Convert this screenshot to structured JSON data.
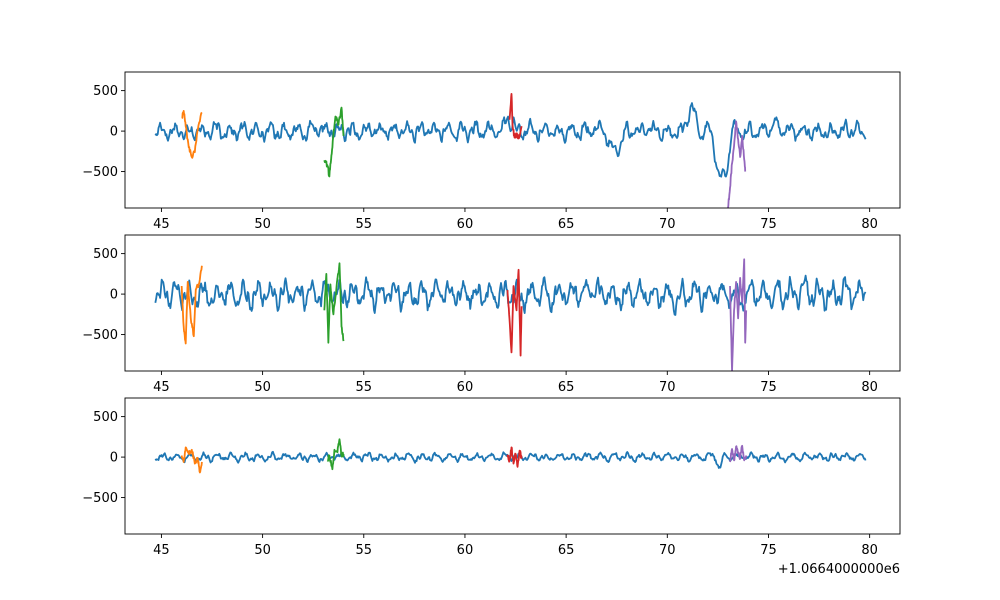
{
  "figure": {
    "offset_label": "+1.0664000000e6"
  },
  "chart_data": [
    {
      "type": "line",
      "title": "",
      "xlabel": "",
      "ylabel": "",
      "x_offset": 1066400,
      "xlim": [
        43.2,
        81.5
      ],
      "ylim": [
        -950,
        730
      ],
      "x_ticks": [
        45,
        50,
        55,
        60,
        65,
        70,
        75,
        80
      ],
      "y_ticks": [
        500,
        0,
        -500
      ],
      "x_tick_labels": [
        "45",
        "50",
        "55",
        "60",
        "65",
        "70",
        "75",
        "80"
      ],
      "y_tick_labels": [
        "500",
        "0",
        "−500"
      ],
      "grid": false,
      "series": [
        {
          "color": "#1f77b4",
          "x_range": [
            44.7,
            79.8
          ],
          "kind": "signal",
          "baseline": 0,
          "amplitude": 140,
          "events": [
            [
              61.8,
              62.6,
              150
            ],
            [
              70.8,
              71.6,
              260
            ],
            [
              72.2,
              73.2,
              -600
            ],
            [
              66.9,
              67.9,
              -250
            ],
            [
              75.0,
              75.6,
              100
            ]
          ]
        },
        {
          "color": "#ff7f0e",
          "x_range": [
            46.0,
            47.0
          ],
          "kind": "events",
          "points": [
            [
              46.0,
              160
            ],
            [
              46.1,
              250
            ],
            [
              46.2,
              60
            ],
            [
              46.35,
              -200
            ],
            [
              46.5,
              -320
            ],
            [
              46.65,
              -260
            ],
            [
              46.8,
              20
            ],
            [
              47.0,
              230
            ]
          ]
        },
        {
          "color": "#2ca02c",
          "x_range": [
            53.0,
            54.0
          ],
          "kind": "events",
          "points": [
            [
              53.05,
              -360
            ],
            [
              53.2,
              -420
            ],
            [
              53.3,
              -560
            ],
            [
              53.4,
              -300
            ],
            [
              53.5,
              -50
            ],
            [
              53.6,
              180
            ],
            [
              53.75,
              80
            ],
            [
              53.9,
              290
            ],
            [
              54.0,
              -60
            ]
          ]
        },
        {
          "color": "#d62728",
          "x_range": [
            62.2,
            62.8
          ],
          "kind": "events",
          "points": [
            [
              62.2,
              140
            ],
            [
              62.3,
              460
            ],
            [
              62.35,
              80
            ],
            [
              62.45,
              -80
            ],
            [
              62.55,
              -40
            ],
            [
              62.65,
              -90
            ],
            [
              62.8,
              60
            ]
          ]
        },
        {
          "color": "#9467bd",
          "x_range": [
            73.0,
            73.9
          ],
          "kind": "events",
          "points": [
            [
              73.0,
              -950
            ],
            [
              73.1,
              -700
            ],
            [
              73.2,
              -400
            ],
            [
              73.3,
              -180
            ],
            [
              73.4,
              120
            ],
            [
              73.5,
              -100
            ],
            [
              73.6,
              -320
            ],
            [
              73.7,
              -60
            ],
            [
              73.8,
              -350
            ],
            [
              73.85,
              -500
            ]
          ]
        }
      ]
    },
    {
      "type": "line",
      "title": "",
      "xlabel": "",
      "ylabel": "",
      "x_offset": 1066400,
      "xlim": [
        43.2,
        81.5
      ],
      "ylim": [
        -950,
        730
      ],
      "x_ticks": [
        45,
        50,
        55,
        60,
        65,
        70,
        75,
        80
      ],
      "y_ticks": [
        500,
        0,
        -500
      ],
      "x_tick_labels": [
        "45",
        "50",
        "55",
        "60",
        "65",
        "70",
        "75",
        "80"
      ],
      "y_tick_labels": [
        "500",
        "0",
        "−500"
      ],
      "grid": false,
      "series": [
        {
          "color": "#1f77b4",
          "x_range": [
            44.7,
            79.8
          ],
          "kind": "signal",
          "baseline": 0,
          "amplitude": 220,
          "events": []
        },
        {
          "color": "#ff7f0e",
          "x_range": [
            46.0,
            47.0
          ],
          "kind": "events",
          "points": [
            [
              46.0,
              100
            ],
            [
              46.1,
              -400
            ],
            [
              46.2,
              -610
            ],
            [
              46.3,
              150
            ],
            [
              46.45,
              -300
            ],
            [
              46.6,
              -520
            ],
            [
              46.7,
              60
            ],
            [
              46.85,
              120
            ],
            [
              47.0,
              350
            ]
          ]
        },
        {
          "color": "#2ca02c",
          "x_range": [
            53.0,
            54.0
          ],
          "kind": "events",
          "points": [
            [
              53.05,
              -200
            ],
            [
              53.15,
              250
            ],
            [
              53.25,
              -600
            ],
            [
              53.35,
              120
            ],
            [
              53.5,
              -250
            ],
            [
              53.65,
              80
            ],
            [
              53.8,
              380
            ],
            [
              53.9,
              -400
            ],
            [
              54.0,
              -580
            ]
          ]
        },
        {
          "color": "#d62728",
          "x_range": [
            62.1,
            62.8
          ],
          "kind": "events",
          "points": [
            [
              62.1,
              50
            ],
            [
              62.2,
              -300
            ],
            [
              62.3,
              -720
            ],
            [
              62.4,
              100
            ],
            [
              62.55,
              -200
            ],
            [
              62.65,
              300
            ],
            [
              62.75,
              -760
            ],
            [
              62.8,
              -150
            ]
          ]
        },
        {
          "color": "#9467bd",
          "x_range": [
            73.1,
            73.9
          ],
          "kind": "events",
          "points": [
            [
              73.1,
              100
            ],
            [
              73.2,
              -950
            ],
            [
              73.3,
              -200
            ],
            [
              73.4,
              150
            ],
            [
              73.5,
              -300
            ],
            [
              73.6,
              200
            ],
            [
              73.7,
              -100
            ],
            [
              73.8,
              430
            ],
            [
              73.85,
              -600
            ],
            [
              73.9,
              -200
            ]
          ]
        }
      ]
    },
    {
      "type": "line",
      "title": "",
      "xlabel": "",
      "ylabel": "",
      "x_offset": 1066400,
      "xlim": [
        43.2,
        81.5
      ],
      "ylim": [
        -950,
        730
      ],
      "x_ticks": [
        45,
        50,
        55,
        60,
        65,
        70,
        75,
        80
      ],
      "y_ticks": [
        500,
        0,
        -500
      ],
      "x_tick_labels": [
        "45",
        "50",
        "55",
        "60",
        "65",
        "70",
        "75",
        "80"
      ],
      "y_tick_labels": [
        "500",
        "0",
        "−500"
      ],
      "grid": false,
      "series": [
        {
          "color": "#1f77b4",
          "x_range": [
            44.7,
            79.8
          ],
          "kind": "signal",
          "baseline": 0,
          "amplitude": 65,
          "events": [
            [
              72.4,
              72.8,
              -120
            ]
          ]
        },
        {
          "color": "#ff7f0e",
          "x_range": [
            46.0,
            47.0
          ],
          "kind": "events",
          "points": [
            [
              46.0,
              20
            ],
            [
              46.1,
              -60
            ],
            [
              46.2,
              120
            ],
            [
              46.35,
              40
            ],
            [
              46.5,
              90
            ],
            [
              46.65,
              -80
            ],
            [
              46.8,
              -20
            ],
            [
              46.9,
              -190
            ],
            [
              47.0,
              -60
            ]
          ]
        },
        {
          "color": "#2ca02c",
          "x_range": [
            53.2,
            54.0
          ],
          "kind": "events",
          "points": [
            [
              53.2,
              -40
            ],
            [
              53.3,
              20
            ],
            [
              53.45,
              -150
            ],
            [
              53.55,
              90
            ],
            [
              53.7,
              60
            ],
            [
              53.8,
              220
            ],
            [
              53.9,
              20
            ],
            [
              54.0,
              40
            ]
          ]
        },
        {
          "color": "#d62728",
          "x_range": [
            62.1,
            62.8
          ],
          "kind": "events",
          "points": [
            [
              62.1,
              30
            ],
            [
              62.2,
              -40
            ],
            [
              62.3,
              120
            ],
            [
              62.4,
              -80
            ],
            [
              62.5,
              40
            ],
            [
              62.6,
              -120
            ],
            [
              62.7,
              80
            ],
            [
              62.8,
              -20
            ]
          ]
        },
        {
          "color": "#9467bd",
          "x_range": [
            73.1,
            73.9
          ],
          "kind": "events",
          "points": [
            [
              73.1,
              -60
            ],
            [
              73.2,
              100
            ],
            [
              73.3,
              -40
            ],
            [
              73.4,
              130
            ],
            [
              73.5,
              60
            ],
            [
              73.6,
              -20
            ],
            [
              73.7,
              140
            ],
            [
              73.8,
              -40
            ],
            [
              73.9,
              20
            ]
          ]
        }
      ]
    }
  ]
}
